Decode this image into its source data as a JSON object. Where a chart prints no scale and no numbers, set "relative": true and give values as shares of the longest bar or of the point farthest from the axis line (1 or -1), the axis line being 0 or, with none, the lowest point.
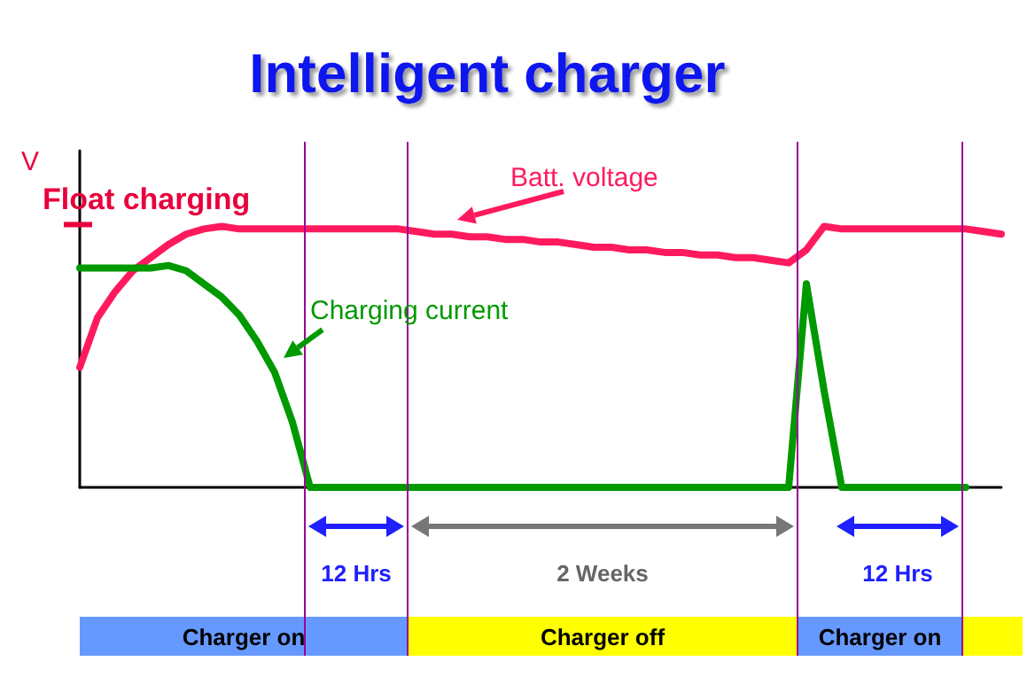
{
  "chart_data": {
    "type": "line",
    "relative": true,
    "title": "Intelligent charger",
    "ylabel": "V",
    "categories": [
      null,
      null,
      null,
      null,
      null,
      null,
      null,
      null,
      null,
      null,
      null,
      null,
      null,
      null,
      null,
      null,
      null,
      null,
      null,
      null,
      null,
      null,
      null,
      null,
      null,
      null,
      null,
      null,
      null,
      null,
      null,
      null,
      null,
      null,
      null,
      null,
      null,
      null,
      null,
      null,
      null,
      null,
      null,
      null,
      null,
      null,
      null,
      null,
      null,
      null,
      null,
      null,
      null
    ],
    "series": [
      {
        "name": "Batt. voltage",
        "color": "#ff1a5e",
        "values": [
          0.46,
          0.65,
          0.75,
          0.83,
          0.88,
          0.93,
          0.97,
          0.99,
          1.0,
          0.99,
          0.99,
          0.99,
          0.99,
          0.99,
          0.99,
          0.99,
          0.99,
          0.99,
          0.99,
          0.98,
          0.97,
          0.97,
          0.96,
          0.96,
          0.95,
          0.95,
          0.94,
          0.94,
          0.93,
          0.92,
          0.92,
          0.91,
          0.91,
          0.9,
          0.9,
          0.89,
          0.89,
          0.88,
          0.88,
          0.87,
          0.86,
          0.91,
          1.0,
          0.99,
          0.99,
          0.99,
          0.99,
          0.99,
          0.99,
          0.99,
          0.99,
          0.98,
          0.97
        ]
      },
      {
        "name": "Charging current",
        "color": "#009900",
        "values": [
          0.84,
          0.84,
          0.84,
          0.84,
          0.84,
          0.85,
          0.83,
          0.78,
          0.73,
          0.66,
          0.56,
          0.44,
          0.25,
          0,
          0,
          0,
          0,
          0,
          0,
          0,
          0,
          0,
          0,
          0,
          0,
          0,
          0,
          0,
          0,
          0,
          0,
          0,
          0,
          0,
          0,
          0,
          0,
          0,
          0,
          0,
          0,
          0.78,
          0.37,
          0,
          0,
          0,
          0,
          0,
          0,
          0,
          0,
          null,
          null
        ]
      }
    ],
    "annotations": [
      "Float charging",
      "12 Hrs",
      "2 Weeks",
      "12 Hrs",
      "Charger on",
      "Charger off",
      "Charger on"
    ]
  }
}
